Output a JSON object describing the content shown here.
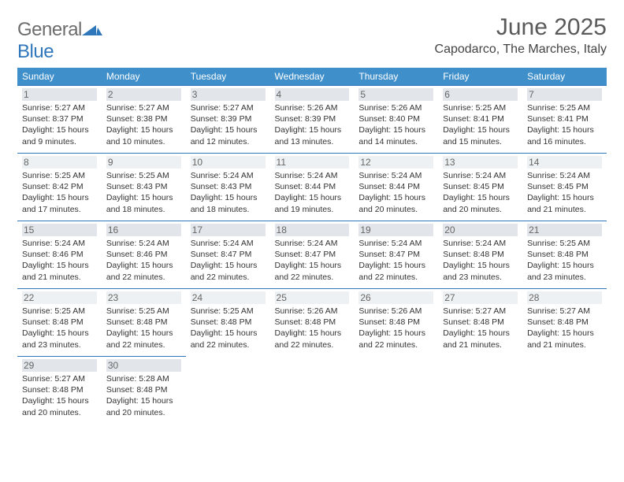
{
  "brand": {
    "part1": "General",
    "part2": "Blue"
  },
  "title": "June 2025",
  "location": "Capodarco, The Marches, Italy",
  "colors": {
    "header_bg": "#3f8fca",
    "rule": "#2f77bb",
    "brand_gray": "#6d6d6d",
    "brand_blue": "#2f77bb"
  },
  "dow": [
    "Sunday",
    "Monday",
    "Tuesday",
    "Wednesday",
    "Thursday",
    "Friday",
    "Saturday"
  ],
  "weeks": [
    [
      {
        "n": "1",
        "sr": "Sunrise: 5:27 AM",
        "ss": "Sunset: 8:37 PM",
        "d1": "Daylight: 15 hours",
        "d2": "and 9 minutes."
      },
      {
        "n": "2",
        "sr": "Sunrise: 5:27 AM",
        "ss": "Sunset: 8:38 PM",
        "d1": "Daylight: 15 hours",
        "d2": "and 10 minutes."
      },
      {
        "n": "3",
        "sr": "Sunrise: 5:27 AM",
        "ss": "Sunset: 8:39 PM",
        "d1": "Daylight: 15 hours",
        "d2": "and 12 minutes."
      },
      {
        "n": "4",
        "sr": "Sunrise: 5:26 AM",
        "ss": "Sunset: 8:39 PM",
        "d1": "Daylight: 15 hours",
        "d2": "and 13 minutes."
      },
      {
        "n": "5",
        "sr": "Sunrise: 5:26 AM",
        "ss": "Sunset: 8:40 PM",
        "d1": "Daylight: 15 hours",
        "d2": "and 14 minutes."
      },
      {
        "n": "6",
        "sr": "Sunrise: 5:25 AM",
        "ss": "Sunset: 8:41 PM",
        "d1": "Daylight: 15 hours",
        "d2": "and 15 minutes."
      },
      {
        "n": "7",
        "sr": "Sunrise: 5:25 AM",
        "ss": "Sunset: 8:41 PM",
        "d1": "Daylight: 15 hours",
        "d2": "and 16 minutes."
      }
    ],
    [
      {
        "n": "8",
        "sr": "Sunrise: 5:25 AM",
        "ss": "Sunset: 8:42 PM",
        "d1": "Daylight: 15 hours",
        "d2": "and 17 minutes."
      },
      {
        "n": "9",
        "sr": "Sunrise: 5:25 AM",
        "ss": "Sunset: 8:43 PM",
        "d1": "Daylight: 15 hours",
        "d2": "and 18 minutes."
      },
      {
        "n": "10",
        "sr": "Sunrise: 5:24 AM",
        "ss": "Sunset: 8:43 PM",
        "d1": "Daylight: 15 hours",
        "d2": "and 18 minutes."
      },
      {
        "n": "11",
        "sr": "Sunrise: 5:24 AM",
        "ss": "Sunset: 8:44 PM",
        "d1": "Daylight: 15 hours",
        "d2": "and 19 minutes."
      },
      {
        "n": "12",
        "sr": "Sunrise: 5:24 AM",
        "ss": "Sunset: 8:44 PM",
        "d1": "Daylight: 15 hours",
        "d2": "and 20 minutes."
      },
      {
        "n": "13",
        "sr": "Sunrise: 5:24 AM",
        "ss": "Sunset: 8:45 PM",
        "d1": "Daylight: 15 hours",
        "d2": "and 20 minutes."
      },
      {
        "n": "14",
        "sr": "Sunrise: 5:24 AM",
        "ss": "Sunset: 8:45 PM",
        "d1": "Daylight: 15 hours",
        "d2": "and 21 minutes."
      }
    ],
    [
      {
        "n": "15",
        "sr": "Sunrise: 5:24 AM",
        "ss": "Sunset: 8:46 PM",
        "d1": "Daylight: 15 hours",
        "d2": "and 21 minutes."
      },
      {
        "n": "16",
        "sr": "Sunrise: 5:24 AM",
        "ss": "Sunset: 8:46 PM",
        "d1": "Daylight: 15 hours",
        "d2": "and 22 minutes."
      },
      {
        "n": "17",
        "sr": "Sunrise: 5:24 AM",
        "ss": "Sunset: 8:47 PM",
        "d1": "Daylight: 15 hours",
        "d2": "and 22 minutes."
      },
      {
        "n": "18",
        "sr": "Sunrise: 5:24 AM",
        "ss": "Sunset: 8:47 PM",
        "d1": "Daylight: 15 hours",
        "d2": "and 22 minutes."
      },
      {
        "n": "19",
        "sr": "Sunrise: 5:24 AM",
        "ss": "Sunset: 8:47 PM",
        "d1": "Daylight: 15 hours",
        "d2": "and 22 minutes."
      },
      {
        "n": "20",
        "sr": "Sunrise: 5:24 AM",
        "ss": "Sunset: 8:48 PM",
        "d1": "Daylight: 15 hours",
        "d2": "and 23 minutes."
      },
      {
        "n": "21",
        "sr": "Sunrise: 5:25 AM",
        "ss": "Sunset: 8:48 PM",
        "d1": "Daylight: 15 hours",
        "d2": "and 23 minutes."
      }
    ],
    [
      {
        "n": "22",
        "sr": "Sunrise: 5:25 AM",
        "ss": "Sunset: 8:48 PM",
        "d1": "Daylight: 15 hours",
        "d2": "and 23 minutes."
      },
      {
        "n": "23",
        "sr": "Sunrise: 5:25 AM",
        "ss": "Sunset: 8:48 PM",
        "d1": "Daylight: 15 hours",
        "d2": "and 22 minutes."
      },
      {
        "n": "24",
        "sr": "Sunrise: 5:25 AM",
        "ss": "Sunset: 8:48 PM",
        "d1": "Daylight: 15 hours",
        "d2": "and 22 minutes."
      },
      {
        "n": "25",
        "sr": "Sunrise: 5:26 AM",
        "ss": "Sunset: 8:48 PM",
        "d1": "Daylight: 15 hours",
        "d2": "and 22 minutes."
      },
      {
        "n": "26",
        "sr": "Sunrise: 5:26 AM",
        "ss": "Sunset: 8:48 PM",
        "d1": "Daylight: 15 hours",
        "d2": "and 22 minutes."
      },
      {
        "n": "27",
        "sr": "Sunrise: 5:27 AM",
        "ss": "Sunset: 8:48 PM",
        "d1": "Daylight: 15 hours",
        "d2": "and 21 minutes."
      },
      {
        "n": "28",
        "sr": "Sunrise: 5:27 AM",
        "ss": "Sunset: 8:48 PM",
        "d1": "Daylight: 15 hours",
        "d2": "and 21 minutes."
      }
    ],
    [
      {
        "n": "29",
        "sr": "Sunrise: 5:27 AM",
        "ss": "Sunset: 8:48 PM",
        "d1": "Daylight: 15 hours",
        "d2": "and 20 minutes."
      },
      {
        "n": "30",
        "sr": "Sunrise: 5:28 AM",
        "ss": "Sunset: 8:48 PM",
        "d1": "Daylight: 15 hours",
        "d2": "and 20 minutes."
      },
      null,
      null,
      null,
      null,
      null
    ]
  ]
}
